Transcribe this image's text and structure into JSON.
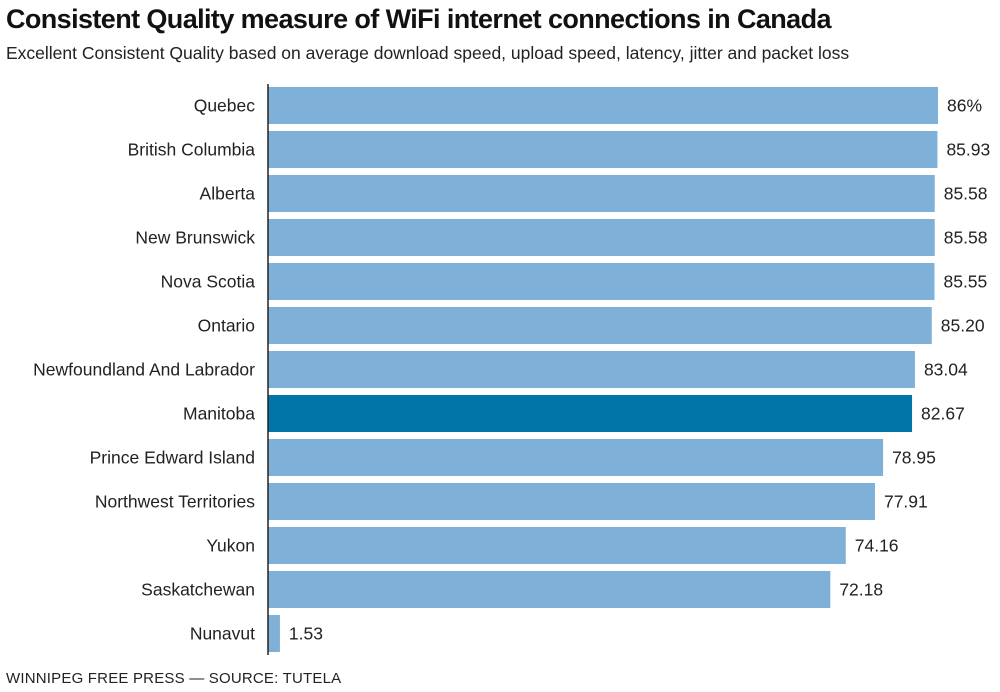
{
  "title": "Consistent Quality measure of WiFi internet connections in Canada",
  "subtitle": "Excellent Consistent Quality based on average download speed, upload speed, latency, jitter and packet loss",
  "source": "WINNIPEG FREE PRESS — SOURCE: TUTELA",
  "colors": {
    "bar": "#7eb0d8",
    "highlight": "#0076a8",
    "axis": "#222222"
  },
  "chart_data": {
    "type": "bar",
    "orientation": "horizontal",
    "title": "Consistent Quality measure of WiFi internet connections in Canada",
    "subtitle": "Excellent Consistent Quality based on average download speed, upload speed, latency, jitter and packet loss",
    "categories": [
      "Quebec",
      "British Columbia",
      "Alberta",
      "New Brunswick",
      "Nova Scotia",
      "Ontario",
      "Newfoundland And Labrador",
      "Manitoba",
      "Prince Edward Island",
      "Northwest Territories",
      "Yukon",
      "Saskatchewan",
      "Nunavut"
    ],
    "values": [
      86,
      85.93,
      85.58,
      85.58,
      85.55,
      85.2,
      83.04,
      82.67,
      78.95,
      77.91,
      74.16,
      72.18,
      1.53
    ],
    "value_labels": [
      "86%",
      "85.93",
      "85.58",
      "85.58",
      "85.55",
      "85.20",
      "83.04",
      "82.67",
      "78.95",
      "77.91",
      "74.16",
      "72.18",
      "1.53"
    ],
    "highlight": "Manitoba",
    "xlim": [
      0,
      86
    ],
    "grid": false,
    "xlabel": "",
    "ylabel": ""
  }
}
